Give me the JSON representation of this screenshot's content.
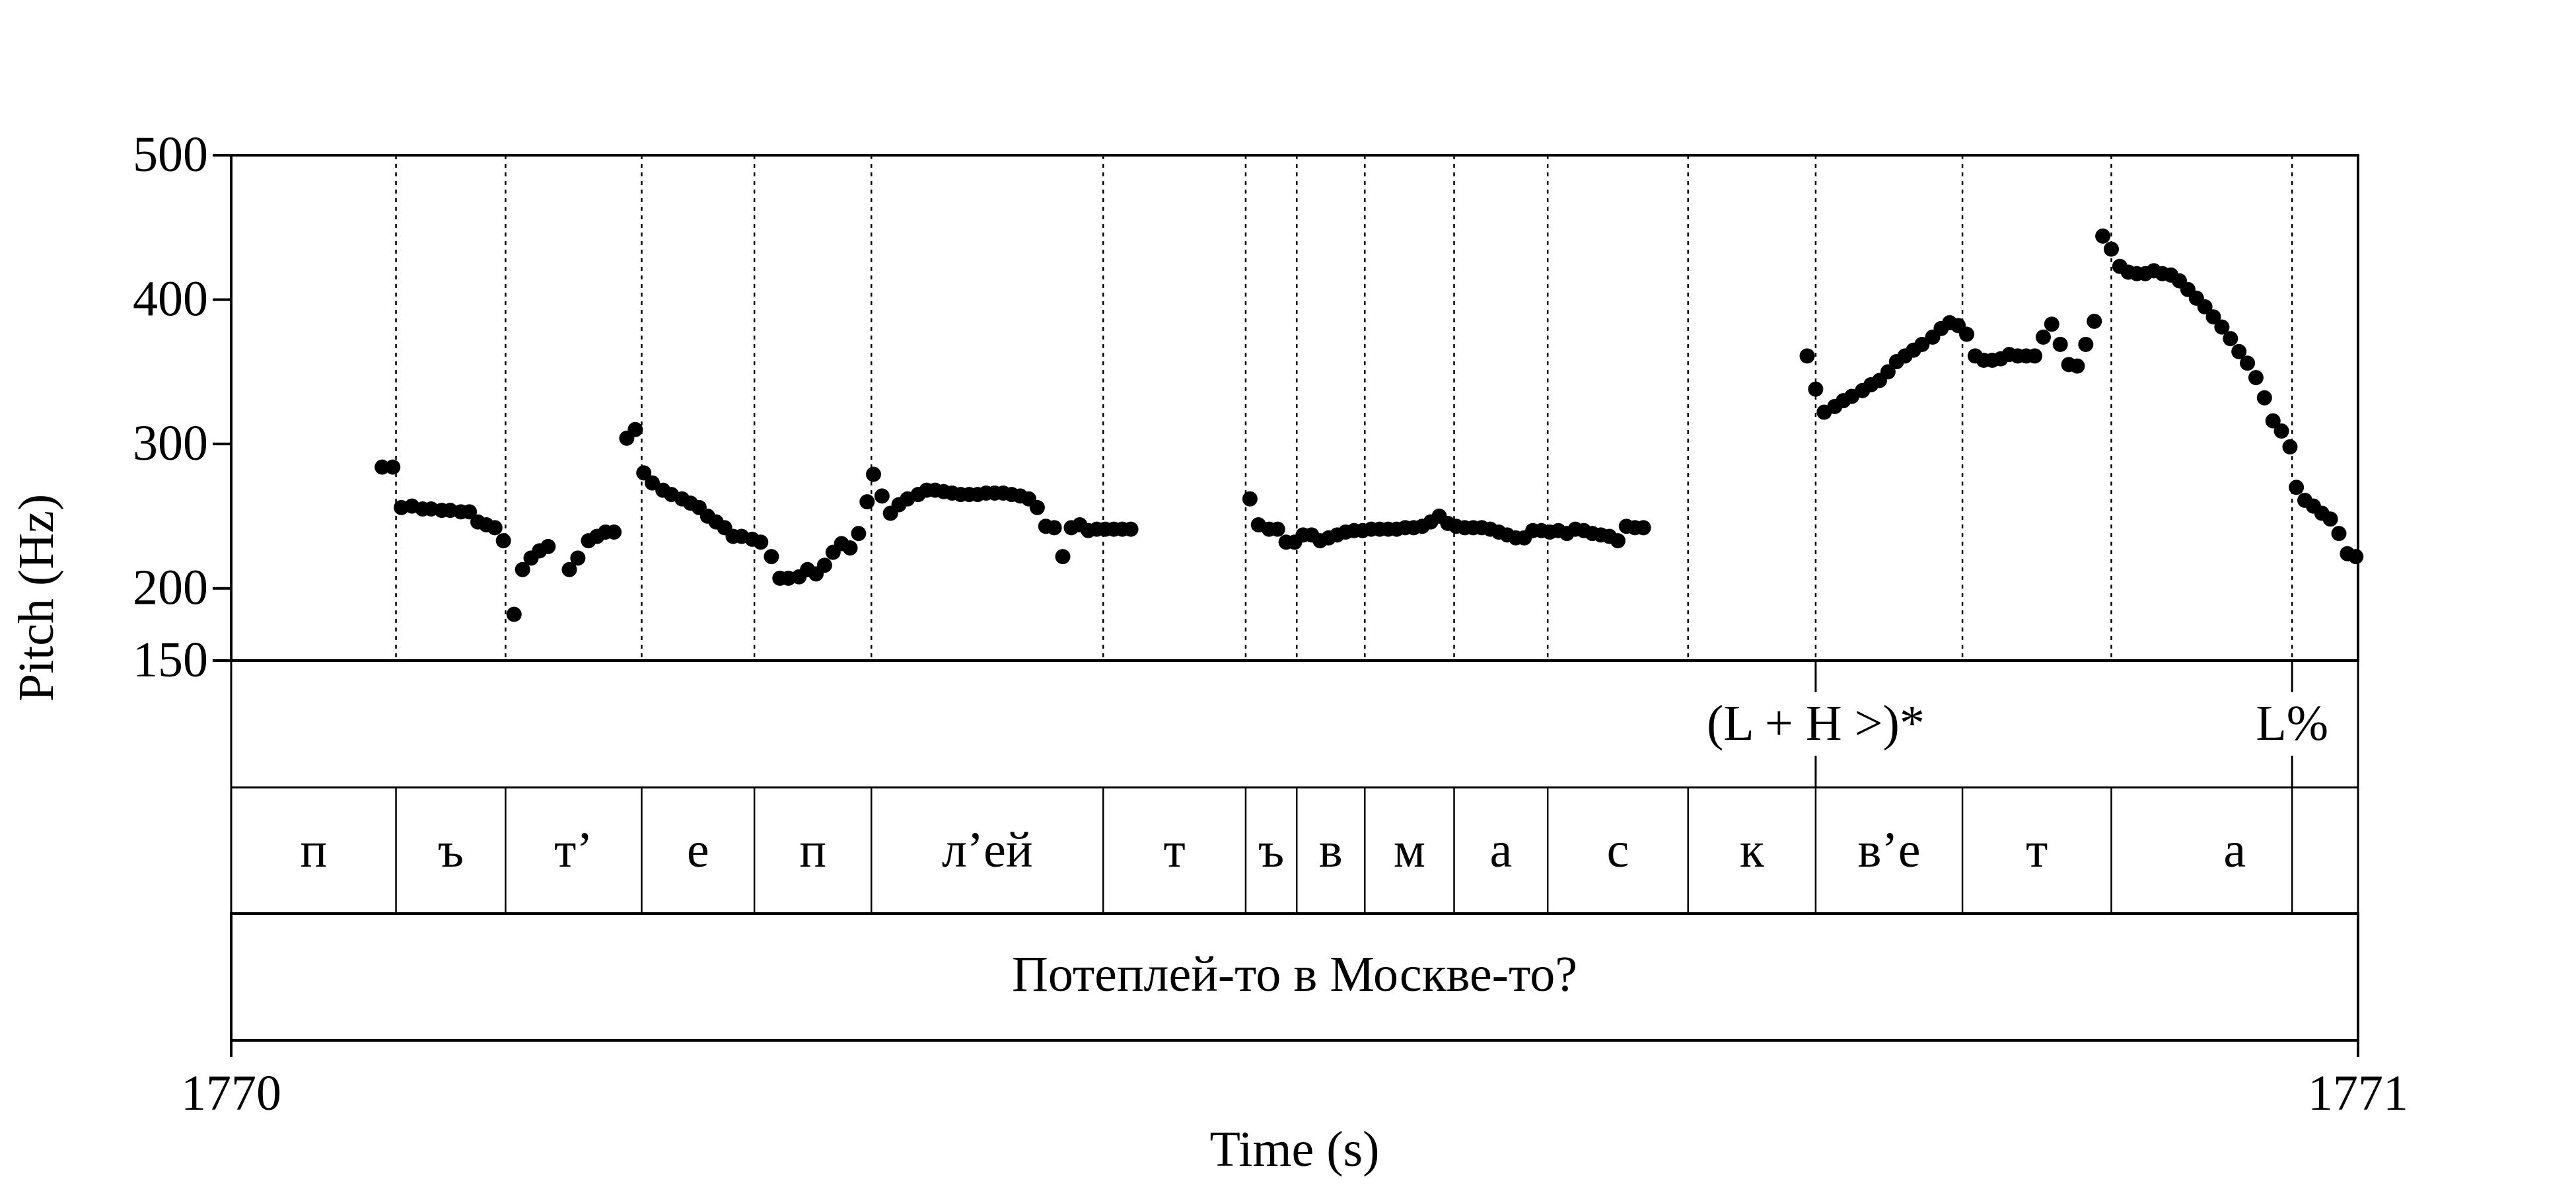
{
  "chart_data": {
    "type": "scatter",
    "title": "",
    "ylabel": "Pitch (Hz)",
    "xlabel": "Time (s)",
    "xlim": [
      1770,
      1771
    ],
    "x_tick_labels": [
      "1770",
      "1771"
    ],
    "ylim": [
      150,
      500
    ],
    "y_ticks": [
      150,
      200,
      300,
      400,
      500
    ],
    "y_tick_labels": [
      "150",
      "200",
      "300",
      "400",
      "500"
    ],
    "grid": false,
    "legend": "none",
    "point_color": "#000000",
    "boundaries": [
      0.0775,
      0.129,
      0.193,
      0.246,
      0.301,
      0.41,
      0.477,
      0.501,
      0.533,
      0.575,
      0.619,
      0.685,
      0.745,
      0.814,
      0.884,
      0.969
    ],
    "tones": [
      {
        "label": "(L + H >)*",
        "x": 0.745
      },
      {
        "label": "L%",
        "x": 0.969
      }
    ],
    "segments": [
      {
        "label": "п",
        "start": 0.0,
        "end": 0.0775
      },
      {
        "label": "ъ",
        "start": 0.0775,
        "end": 0.129
      },
      {
        "label": "т’",
        "start": 0.129,
        "end": 0.193
      },
      {
        "label": "е",
        "start": 0.193,
        "end": 0.246
      },
      {
        "label": "п",
        "start": 0.246,
        "end": 0.301
      },
      {
        "label": "л’ей",
        "start": 0.301,
        "end": 0.41
      },
      {
        "label": "т",
        "start": 0.41,
        "end": 0.477
      },
      {
        "label": "ъ",
        "start": 0.477,
        "end": 0.501
      },
      {
        "label": "в",
        "start": 0.501,
        "end": 0.533
      },
      {
        "label": "м",
        "start": 0.533,
        "end": 0.575
      },
      {
        "label": "а",
        "start": 0.575,
        "end": 0.619
      },
      {
        "label": "с",
        "start": 0.619,
        "end": 0.685
      },
      {
        "label": "к",
        "start": 0.685,
        "end": 0.745
      },
      {
        "label": "в’е",
        "start": 0.745,
        "end": 0.814
      },
      {
        "label": "т",
        "start": 0.814,
        "end": 0.884
      },
      {
        "label": "а",
        "start": 0.884,
        "end": 1.0
      }
    ],
    "sentence": "Потеплей-то в Москве-то?",
    "series": [
      {
        "points": [
          [
            0.071,
            284
          ],
          [
            0.076,
            284
          ],
          [
            0.08,
            256
          ],
          [
            0.085,
            257
          ],
          [
            0.09,
            255
          ],
          [
            0.094,
            255
          ],
          [
            0.099,
            254
          ],
          [
            0.103,
            254
          ],
          [
            0.108,
            253
          ],
          [
            0.112,
            253
          ],
          [
            0.116,
            246
          ],
          [
            0.12,
            244
          ],
          [
            0.124,
            242
          ],
          [
            0.128,
            233
          ],
          [
            0.133,
            182
          ],
          [
            0.137,
            213
          ],
          [
            0.141,
            221
          ],
          [
            0.145,
            226
          ],
          [
            0.149,
            229
          ],
          [
            0.159,
            213
          ],
          [
            0.163,
            221
          ],
          [
            0.168,
            233
          ],
          [
            0.172,
            236
          ],
          [
            0.176,
            239
          ],
          [
            0.18,
            239
          ],
          [
            0.186,
            304
          ],
          [
            0.19,
            310
          ],
          [
            0.194,
            280
          ],
          [
            0.198,
            273
          ],
          [
            0.203,
            268
          ],
          [
            0.207,
            265
          ],
          [
            0.212,
            262
          ],
          [
            0.216,
            259
          ],
          [
            0.22,
            256
          ],
          [
            0.224,
            250
          ],
          [
            0.228,
            246
          ],
          [
            0.232,
            242
          ],
          [
            0.236,
            236
          ],
          [
            0.24,
            236
          ],
          [
            0.245,
            234
          ],
          [
            0.249,
            232
          ],
          [
            0.254,
            222
          ],
          [
            0.258,
            207
          ],
          [
            0.262,
            207
          ],
          [
            0.267,
            208
          ],
          [
            0.271,
            213
          ],
          [
            0.275,
            210
          ],
          [
            0.279,
            216
          ],
          [
            0.283,
            225
          ],
          [
            0.287,
            231
          ],
          [
            0.291,
            228
          ],
          [
            0.295,
            238
          ],
          [
            0.299,
            260
          ],
          [
            0.302,
            279
          ],
          [
            0.306,
            264
          ],
          [
            0.31,
            252
          ],
          [
            0.314,
            258
          ],
          [
            0.318,
            262
          ],
          [
            0.323,
            265
          ],
          [
            0.327,
            268
          ],
          [
            0.331,
            268
          ],
          [
            0.335,
            267
          ],
          [
            0.339,
            266
          ],
          [
            0.343,
            265
          ],
          [
            0.347,
            265
          ],
          [
            0.351,
            265
          ],
          [
            0.355,
            266
          ],
          [
            0.359,
            266
          ],
          [
            0.363,
            266
          ],
          [
            0.367,
            265
          ],
          [
            0.371,
            264
          ],
          [
            0.375,
            262
          ],
          [
            0.379,
            256
          ],
          [
            0.383,
            243
          ],
          [
            0.387,
            242
          ],
          [
            0.391,
            222
          ],
          [
            0.395,
            242
          ],
          [
            0.399,
            244
          ],
          [
            0.403,
            240
          ],
          [
            0.407,
            241
          ],
          [
            0.411,
            241
          ],
          [
            0.415,
            241
          ],
          [
            0.419,
            241
          ],
          [
            0.423,
            241
          ]
        ]
      },
      {
        "points": [
          [
            0.479,
            262
          ],
          [
            0.483,
            244
          ],
          [
            0.488,
            241
          ],
          [
            0.492,
            241
          ],
          [
            0.496,
            232
          ],
          [
            0.5,
            232
          ],
          [
            0.504,
            237
          ],
          [
            0.508,
            237
          ],
          [
            0.512,
            233
          ],
          [
            0.516,
            235
          ],
          [
            0.52,
            237
          ],
          [
            0.524,
            239
          ],
          [
            0.528,
            240
          ],
          [
            0.532,
            240
          ],
          [
            0.536,
            241
          ],
          [
            0.54,
            241
          ],
          [
            0.544,
            241
          ],
          [
            0.548,
            241
          ],
          [
            0.552,
            242
          ],
          [
            0.556,
            242
          ],
          [
            0.56,
            243
          ],
          [
            0.564,
            246
          ],
          [
            0.568,
            250
          ],
          [
            0.572,
            245
          ],
          [
            0.576,
            243
          ],
          [
            0.58,
            242
          ],
          [
            0.584,
            242
          ],
          [
            0.588,
            242
          ],
          [
            0.592,
            241
          ],
          [
            0.596,
            239
          ],
          [
            0.6,
            237
          ],
          [
            0.604,
            235
          ],
          [
            0.608,
            235
          ],
          [
            0.612,
            240
          ],
          [
            0.616,
            240
          ],
          [
            0.62,
            239
          ],
          [
            0.624,
            240
          ],
          [
            0.628,
            238
          ],
          [
            0.632,
            241
          ],
          [
            0.636,
            240
          ],
          [
            0.64,
            238
          ],
          [
            0.644,
            237
          ],
          [
            0.648,
            236
          ],
          [
            0.652,
            233
          ],
          [
            0.656,
            243
          ],
          [
            0.66,
            242
          ],
          [
            0.664,
            242
          ]
        ]
      },
      {
        "points": [
          [
            0.741,
            361
          ],
          [
            0.745,
            338
          ],
          [
            0.749,
            322
          ],
          [
            0.754,
            326
          ],
          [
            0.758,
            330
          ],
          [
            0.762,
            333
          ],
          [
            0.767,
            337
          ],
          [
            0.771,
            341
          ],
          [
            0.775,
            344
          ],
          [
            0.779,
            350
          ],
          [
            0.783,
            357
          ],
          [
            0.787,
            361
          ],
          [
            0.791,
            365
          ],
          [
            0.795,
            369
          ],
          [
            0.8,
            374
          ],
          [
            0.804,
            380
          ],
          [
            0.808,
            384
          ],
          [
            0.812,
            382
          ],
          [
            0.816,
            376
          ],
          [
            0.82,
            361
          ],
          [
            0.824,
            358
          ],
          [
            0.828,
            358
          ],
          [
            0.832,
            359
          ],
          [
            0.836,
            362
          ],
          [
            0.84,
            361
          ],
          [
            0.844,
            361
          ],
          [
            0.848,
            361
          ],
          [
            0.852,
            374
          ],
          [
            0.856,
            383
          ],
          [
            0.86,
            369
          ],
          [
            0.864,
            355
          ],
          [
            0.868,
            354
          ],
          [
            0.872,
            369
          ],
          [
            0.876,
            385
          ],
          [
            0.88,
            444
          ],
          [
            0.884,
            435
          ],
          [
            0.888,
            423
          ],
          [
            0.892,
            419
          ],
          [
            0.896,
            418
          ],
          [
            0.9,
            418
          ],
          [
            0.904,
            420
          ],
          [
            0.908,
            418
          ],
          [
            0.912,
            417
          ],
          [
            0.916,
            413
          ],
          [
            0.92,
            407
          ],
          [
            0.924,
            401
          ],
          [
            0.928,
            395
          ],
          [
            0.932,
            388
          ],
          [
            0.936,
            381
          ],
          [
            0.94,
            373
          ],
          [
            0.944,
            364
          ],
          [
            0.948,
            356
          ],
          [
            0.952,
            346
          ],
          [
            0.956,
            332
          ],
          [
            0.96,
            316
          ],
          [
            0.964,
            309
          ],
          [
            0.968,
            298
          ],
          [
            0.971,
            270
          ],
          [
            0.975,
            261
          ],
          [
            0.979,
            257
          ],
          [
            0.983,
            252
          ],
          [
            0.987,
            248
          ],
          [
            0.991,
            238
          ],
          [
            0.995,
            224
          ],
          [
            0.999,
            222
          ]
        ]
      }
    ]
  }
}
